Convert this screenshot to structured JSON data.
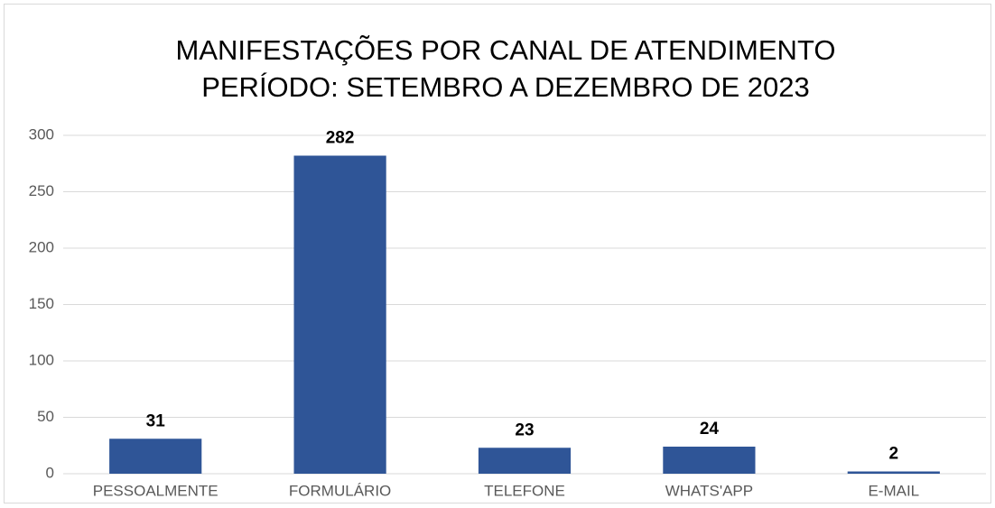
{
  "chart_data": {
    "type": "bar",
    "title": "MANIFESTAÇÕES POR CANAL DE ATENDIMENTO",
    "subtitle": "PERÍODO: SETEMBRO A DEZEMBRO DE 2023",
    "categories": [
      "PESSOALMENTE",
      "FORMULÁRIO",
      "TELEFONE",
      "WHATS'APP",
      "E-MAIL"
    ],
    "values": [
      31,
      282,
      23,
      24,
      2
    ],
    "color": "#2f5597",
    "ylim": [
      0,
      300
    ],
    "yticks": [
      0,
      50,
      100,
      150,
      200,
      250,
      300
    ],
    "grid": true
  }
}
